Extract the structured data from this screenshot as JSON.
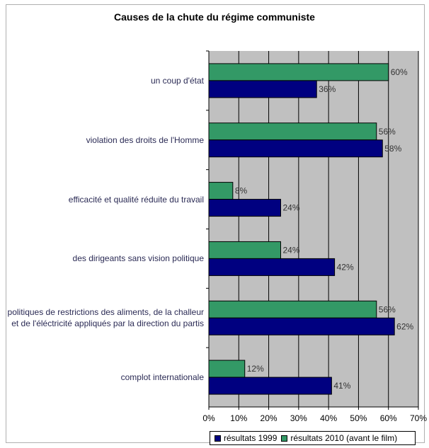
{
  "chart_data": {
    "type": "bar",
    "orientation": "horizontal",
    "title": "Causes de la chute du régime communiste",
    "categories": [
      "un coup d'état",
      "violation des droits de l'Homme",
      "efficacité et qualité réduite du travail",
      "des dirigeants sans vision politique",
      "politiques de restrictions des aliments, de la challeur et de l'éléctricité appliqués par la direction du partis",
      "complot internationale"
    ],
    "series": [
      {
        "name": "résultats 2010 (avant le film)",
        "color": "#339966",
        "values": [
          60,
          56,
          8,
          24,
          56,
          12
        ],
        "labels": [
          "60%",
          "56%",
          "8%",
          "24%",
          "56%",
          "12%"
        ]
      },
      {
        "name": "résultats 1999",
        "color": "#000080",
        "values": [
          36,
          58,
          24,
          42,
          62,
          41
        ],
        "labels": [
          "36%",
          "58%",
          "24%",
          "42%",
          "62%",
          "41%"
        ]
      }
    ],
    "xlim": [
      0,
      70
    ],
    "xticks": [
      "0%",
      "10%",
      "20%",
      "30%",
      "40%",
      "50%",
      "60%",
      "70%"
    ],
    "plot_background": "#c0c0c0",
    "grid": true,
    "legend": {
      "position": "bottom",
      "entries": [
        "résultats 1999",
        "résultats 2010 (avant le film)"
      ]
    }
  }
}
